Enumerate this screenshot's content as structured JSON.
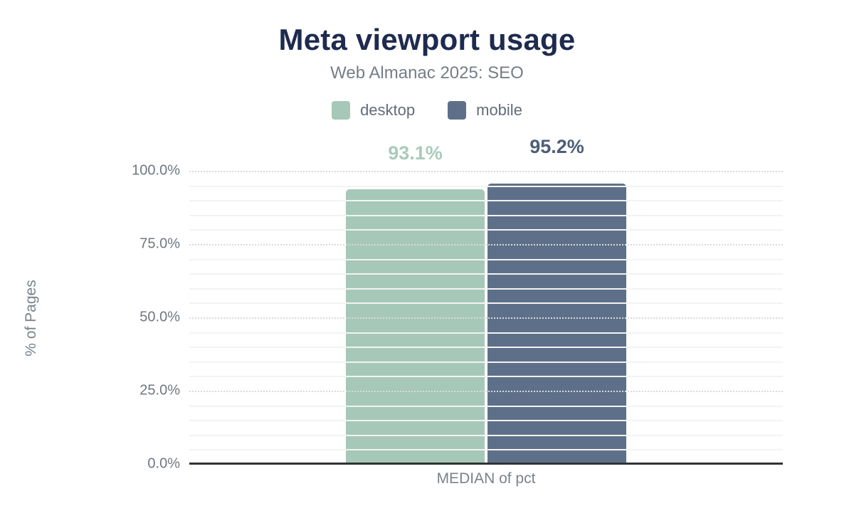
{
  "chart_data": {
    "type": "bar",
    "title": "Meta viewport usage",
    "subtitle": "Web Almanac 2025: SEO",
    "xlabel": "MEDIAN of pct",
    "ylabel": "% of Pages",
    "categories": [
      "MEDIAN of pct"
    ],
    "series": [
      {
        "name": "desktop",
        "values": [
          93.1
        ],
        "data_label": "93.1%",
        "color": "#a6c8b8",
        "label_color": "#a9cbba"
      },
      {
        "name": "mobile",
        "values": [
          95.2
        ],
        "data_label": "95.2%",
        "color": "#5e7089",
        "label_color": "#4c5e78"
      }
    ],
    "ylim": [
      0,
      100
    ],
    "yticks": [
      {
        "value": 0,
        "label": "0.0%"
      },
      {
        "value": 25,
        "label": "25.0%"
      },
      {
        "value": 50,
        "label": "50.0%"
      },
      {
        "value": 75,
        "label": "75.0%"
      },
      {
        "value": 100,
        "label": "100.0%"
      }
    ],
    "minor_tick_step": 5,
    "grid": true,
    "legend_position": "top"
  },
  "colors": {
    "background": "#ffffff",
    "title": "#1e2b4e",
    "subtitle": "#757e89",
    "legend_label": "#616d7a",
    "tick_label": "#6f7780",
    "axis_title": "#7a828c",
    "axis_line": "#313335",
    "major_grid": "#dadada",
    "minor_grid": "#f3f3f3"
  }
}
